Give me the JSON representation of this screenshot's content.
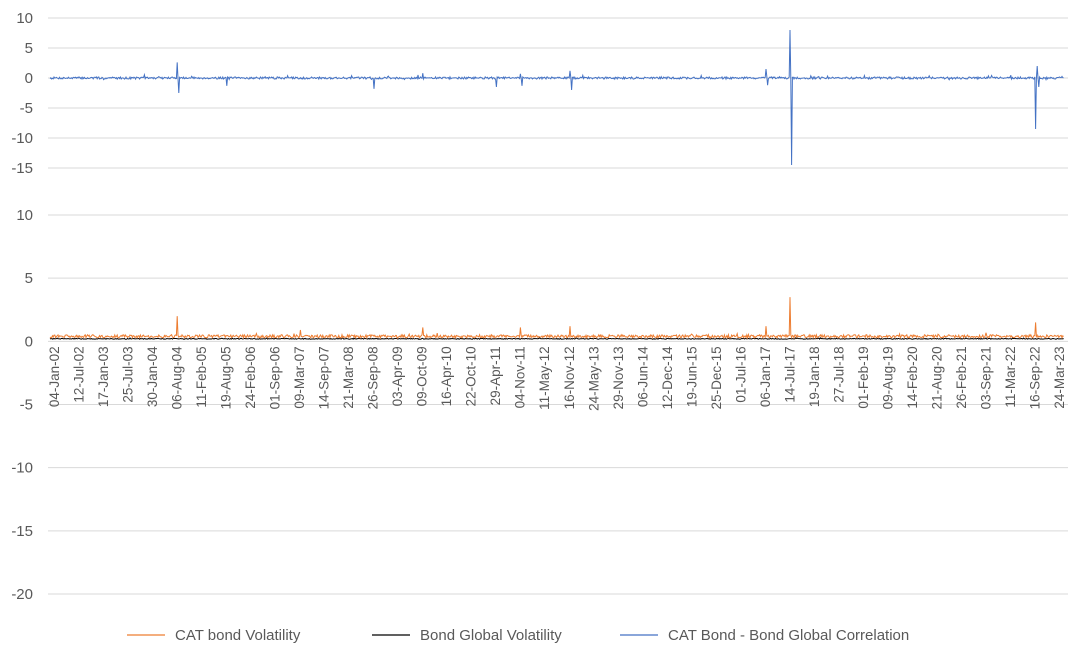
{
  "chart_data": [
    {
      "type": "line",
      "title": "",
      "xlabel": "",
      "ylabel": "",
      "ylim": [
        -15,
        10
      ],
      "yticks": [
        10,
        5,
        0,
        -5,
        -10,
        -15
      ],
      "grid": true,
      "x_range": [
        "04-Jan-02",
        "24-Mar-23"
      ],
      "series": [
        {
          "name": "CAT Bond - Bond Global Correlation",
          "color": "#4472C4",
          "baseline": 0,
          "spikes": [
            {
              "x": "06-Aug-04",
              "values": [
                2.6,
                -2.5
              ]
            },
            {
              "x": "19-Aug-05",
              "values": [
                -1.3
              ]
            },
            {
              "x": "26-Sep-08",
              "values": [
                -1.8
              ]
            },
            {
              "x": "09-Oct-09",
              "values": [
                0.8
              ]
            },
            {
              "x": "29-Apr-11",
              "values": [
                -1.5
              ]
            },
            {
              "x": "04-Nov-11",
              "values": [
                0.7,
                -1.3
              ]
            },
            {
              "x": "16-Nov-12",
              "values": [
                1.2,
                -2.0
              ]
            },
            {
              "x": "06-Jan-17",
              "values": [
                1.5,
                -1.2
              ]
            },
            {
              "x": "14-Jul-17",
              "values": [
                8.0,
                -14.5
              ]
            },
            {
              "x": "16-Sep-22",
              "values": [
                -8.5,
                2.0,
                -1.5
              ]
            }
          ]
        }
      ]
    },
    {
      "type": "line",
      "title": "",
      "xlabel": "",
      "ylabel": "",
      "ylim": [
        -20,
        10
      ],
      "yticks": [
        10,
        5,
        0,
        -5,
        -10,
        -15,
        -20
      ],
      "grid": true,
      "x_tick_labels": [
        "04-Jan-02",
        "12-Jul-02",
        "17-Jan-03",
        "25-Jul-03",
        "30-Jan-04",
        "06-Aug-04",
        "11-Feb-05",
        "19-Aug-05",
        "24-Feb-06",
        "01-Sep-06",
        "09-Mar-07",
        "14-Sep-07",
        "21-Mar-08",
        "26-Sep-08",
        "03-Apr-09",
        "09-Oct-09",
        "16-Apr-10",
        "22-Oct-10",
        "29-Apr-11",
        "04-Nov-11",
        "11-May-12",
        "16-Nov-12",
        "24-May-13",
        "29-Nov-13",
        "06-Jun-14",
        "12-Dec-14",
        "19-Jun-15",
        "25-Dec-15",
        "01-Jul-16",
        "06-Jan-17",
        "14-Jul-17",
        "19-Jan-18",
        "27-Jul-18",
        "01-Feb-19",
        "09-Aug-19",
        "14-Feb-20",
        "21-Aug-20",
        "26-Feb-21",
        "03-Sep-21",
        "11-Mar-22",
        "16-Sep-22",
        "24-Mar-23"
      ],
      "series": [
        {
          "name": "CAT bond Volatility",
          "color": "#ED7D31",
          "baseline": 0.4,
          "spikes": [
            {
              "x": "06-Aug-04",
              "values": [
                2.0
              ]
            },
            {
              "x": "09-Mar-07",
              "values": [
                0.9
              ]
            },
            {
              "x": "09-Oct-09",
              "values": [
                1.1
              ]
            },
            {
              "x": "04-Nov-11",
              "values": [
                1.1
              ]
            },
            {
              "x": "16-Nov-12",
              "values": [
                1.2
              ]
            },
            {
              "x": "06-Jan-17",
              "values": [
                1.2
              ]
            },
            {
              "x": "14-Jul-17",
              "values": [
                3.5
              ]
            },
            {
              "x": "16-Sep-22",
              "values": [
                1.5
              ]
            }
          ]
        },
        {
          "name": "Bond Global Volatility",
          "color": "#000000",
          "baseline": 0.2,
          "spikes": []
        }
      ],
      "legend": {
        "placement": "bottom",
        "entries": [
          "CAT bond Volatility",
          "Bond Global Volatility",
          "CAT Bond - Bond Global Correlation"
        ]
      }
    }
  ]
}
